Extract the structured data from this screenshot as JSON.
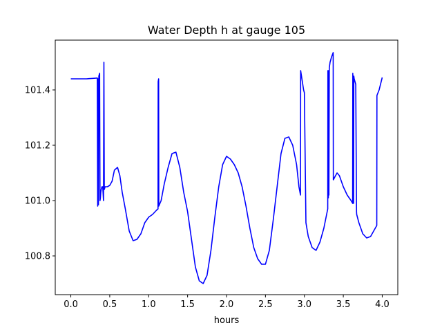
{
  "chart_data": {
    "type": "line",
    "title": "Water Depth h at gauge 105",
    "xlabel": "hours",
    "ylabel": "",
    "xlim": [
      -0.2,
      4.2
    ],
    "ylim": [
      100.66,
      101.58
    ],
    "xticks": [
      0.0,
      0.5,
      1.0,
      1.5,
      2.0,
      2.5,
      3.0,
      3.5,
      4.0
    ],
    "xtick_labels": [
      "0.0",
      "0.5",
      "1.0",
      "1.5",
      "2.0",
      "2.5",
      "3.0",
      "3.5",
      "4.0"
    ],
    "yticks": [
      100.8,
      101.0,
      101.2,
      101.4
    ],
    "ytick_labels": [
      "100.8",
      "101.0",
      "101.2",
      "101.4"
    ],
    "grid": false,
    "series": [
      {
        "name": "",
        "color": "#0000ff",
        "x": [
          0.0,
          0.1,
          0.2,
          0.3,
          0.34,
          0.345,
          0.35,
          0.355,
          0.36,
          0.37,
          0.375,
          0.38,
          0.385,
          0.39,
          0.4,
          0.41,
          0.42,
          0.425,
          0.43,
          0.44,
          0.47,
          0.5,
          0.53,
          0.56,
          0.6,
          0.63,
          0.66,
          0.7,
          0.75,
          0.8,
          0.85,
          0.9,
          0.95,
          1.0,
          1.05,
          1.1,
          1.12,
          1.122,
          1.128,
          1.13,
          1.16,
          1.2,
          1.25,
          1.3,
          1.35,
          1.4,
          1.45,
          1.5,
          1.55,
          1.6,
          1.65,
          1.7,
          1.75,
          1.8,
          1.85,
          1.9,
          1.95,
          2.0,
          2.05,
          2.1,
          2.15,
          2.2,
          2.25,
          2.3,
          2.35,
          2.4,
          2.45,
          2.5,
          2.55,
          2.6,
          2.65,
          2.7,
          2.75,
          2.8,
          2.85,
          2.9,
          2.93,
          2.95,
          2.952,
          2.99,
          3.0,
          3.02,
          3.05,
          3.1,
          3.15,
          3.2,
          3.25,
          3.3,
          3.302,
          3.308,
          3.31,
          3.315,
          3.32,
          3.33,
          3.35,
          3.37,
          3.372,
          3.4,
          3.42,
          3.45,
          3.5,
          3.55,
          3.6,
          3.62,
          3.622,
          3.632,
          3.635,
          3.64,
          3.65,
          3.66,
          3.67,
          3.672,
          3.7,
          3.75,
          3.8,
          3.85,
          3.9,
          3.93,
          3.932,
          3.96,
          4.0
        ],
        "values": [
          101.44,
          101.44,
          101.44,
          101.442,
          101.443,
          100.98,
          101.44,
          100.985,
          101.45,
          101.46,
          101.0,
          101.01,
          101.03,
          101.04,
          101.05,
          101.05,
          101.0,
          101.5,
          101.04,
          101.05,
          101.05,
          101.055,
          101.07,
          101.11,
          101.12,
          101.09,
          101.03,
          100.97,
          100.89,
          100.855,
          100.86,
          100.88,
          100.92,
          100.94,
          100.95,
          100.965,
          100.97,
          101.43,
          101.44,
          100.98,
          101.0,
          101.06,
          101.12,
          101.17,
          101.175,
          101.12,
          101.03,
          100.96,
          100.86,
          100.76,
          100.71,
          100.7,
          100.73,
          100.82,
          100.94,
          101.05,
          101.13,
          101.16,
          101.15,
          101.13,
          101.1,
          101.05,
          100.98,
          100.9,
          100.83,
          100.79,
          100.77,
          100.77,
          100.82,
          100.93,
          101.05,
          101.17,
          101.225,
          101.23,
          101.2,
          101.13,
          101.05,
          101.02,
          101.47,
          101.4,
          101.39,
          100.92,
          100.87,
          100.83,
          100.82,
          100.85,
          100.9,
          100.97,
          101.47,
          101.01,
          101.47,
          101.02,
          101.48,
          101.5,
          101.52,
          101.535,
          101.075,
          101.09,
          101.1,
          101.09,
          101.05,
          101.02,
          101.0,
          100.99,
          101.46,
          100.99,
          101.45,
          101.44,
          101.43,
          101.42,
          100.96,
          100.95,
          100.92,
          100.88,
          100.865,
          100.87,
          100.895,
          100.91,
          101.38,
          101.4,
          101.445
        ]
      }
    ]
  }
}
